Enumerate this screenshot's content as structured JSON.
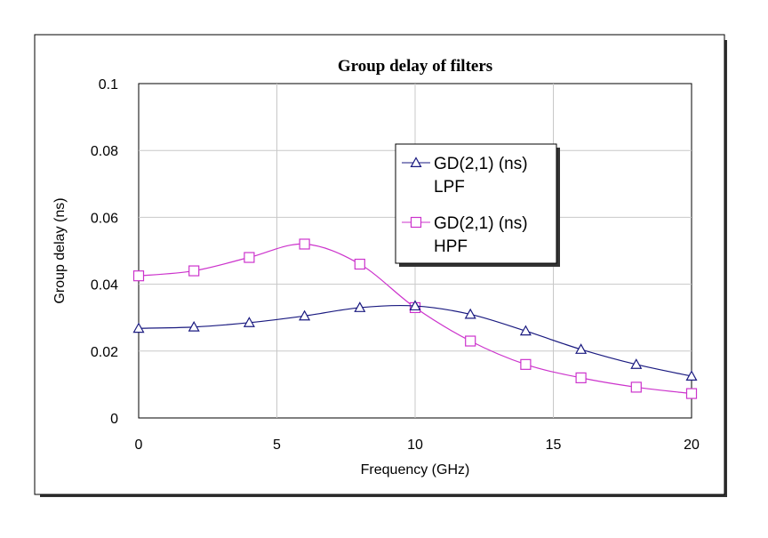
{
  "chart_data": {
    "type": "line",
    "title": "Group delay of filters",
    "xlabel": "Frequency (GHz)",
    "ylabel": "Group delay (ns)",
    "xlim": [
      0,
      20
    ],
    "ylim": [
      0,
      0.1
    ],
    "x_ticks": [
      "0",
      "5",
      "10",
      "15",
      "20"
    ],
    "y_ticks": [
      "0",
      "0.02",
      "0.04",
      "0.06",
      "0.08",
      "0.1"
    ],
    "grid": true,
    "legend_position": "top-right",
    "series": [
      {
        "name": "GD(2,1) (ns) LPF",
        "legend_line1": "GD(2,1) (ns)",
        "legend_line2": "LPF",
        "color": "#1a1a80",
        "marker": "triangle",
        "x": [
          0,
          2,
          4,
          6,
          8,
          10,
          12,
          14,
          16,
          18,
          20
        ],
        "values": [
          0.0268,
          0.0272,
          0.0285,
          0.0305,
          0.033,
          0.0335,
          0.031,
          0.026,
          0.0205,
          0.016,
          0.0125
        ]
      },
      {
        "name": "GD(2,1) (ns) HPF",
        "legend_line1": "GD(2,1) (ns)",
        "legend_line2": "HPF",
        "color": "#cc33cc",
        "marker": "square",
        "x": [
          0,
          2,
          4,
          6,
          8,
          10,
          12,
          14,
          16,
          18,
          20
        ],
        "values": [
          0.0425,
          0.044,
          0.048,
          0.052,
          0.046,
          0.033,
          0.023,
          0.016,
          0.012,
          0.0092,
          0.0073
        ]
      }
    ]
  }
}
